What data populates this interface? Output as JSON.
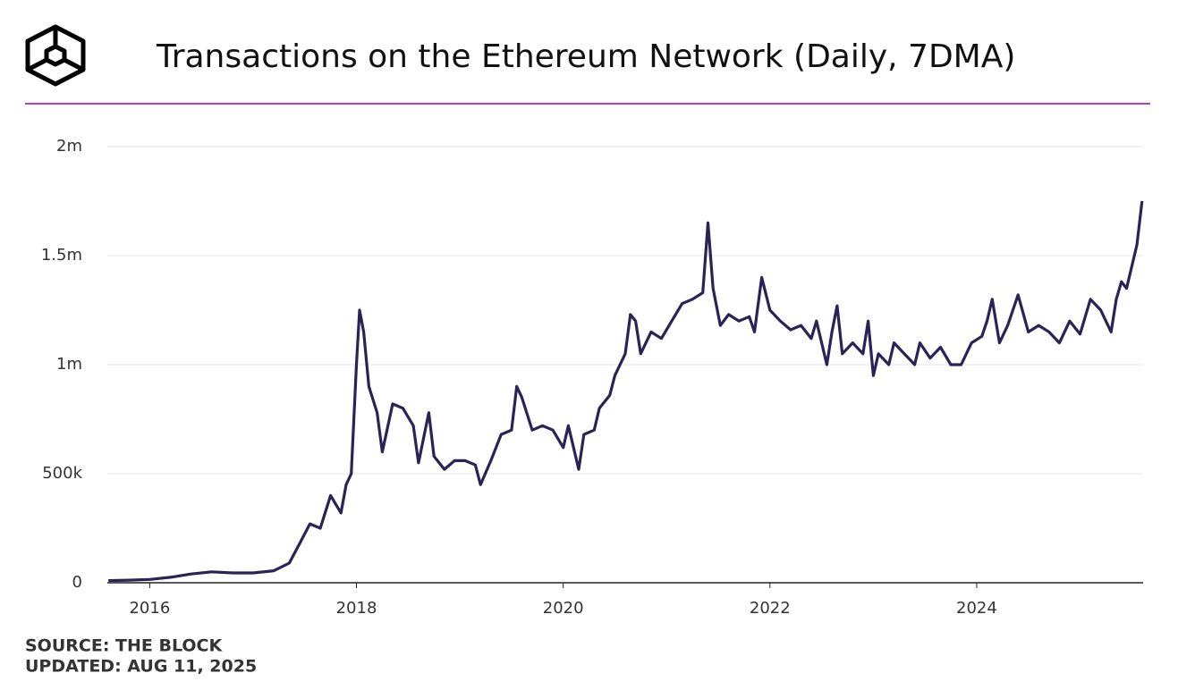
{
  "chart_data": {
    "type": "line",
    "title": "Transactions on the Ethereum Network (Daily, 7DMA)",
    "source": "SOURCE: THE BLOCK",
    "updated": "UPDATED: AUG 11, 2025",
    "color": "#2a2356",
    "grid": true,
    "xlim": [
      2015.59,
      2025.61
    ],
    "xticks": [
      2016,
      2018,
      2020,
      2022,
      2024
    ],
    "ylim": [
      0,
      2000000
    ],
    "yticks": [
      {
        "value": 0,
        "label": "0"
      },
      {
        "value": 500000,
        "label": "500k"
      },
      {
        "value": 1000000,
        "label": "1m"
      },
      {
        "value": 1500000,
        "label": "1.5m"
      },
      {
        "value": 2000000,
        "label": "2m"
      }
    ],
    "x": [
      2015.6,
      2015.8,
      2016.0,
      2016.2,
      2016.4,
      2016.6,
      2016.8,
      2017.0,
      2017.2,
      2017.35,
      2017.45,
      2017.55,
      2017.65,
      2017.75,
      2017.85,
      2017.9,
      2017.95,
      2018.0,
      2018.03,
      2018.07,
      2018.12,
      2018.2,
      2018.25,
      2018.35,
      2018.45,
      2018.55,
      2018.6,
      2018.7,
      2018.75,
      2018.85,
      2018.95,
      2019.05,
      2019.15,
      2019.2,
      2019.3,
      2019.4,
      2019.5,
      2019.55,
      2019.6,
      2019.7,
      2019.8,
      2019.9,
      2020.0,
      2020.05,
      2020.15,
      2020.2,
      2020.3,
      2020.35,
      2020.45,
      2020.5,
      2020.6,
      2020.65,
      2020.7,
      2020.75,
      2020.85,
      2020.95,
      2021.05,
      2021.15,
      2021.25,
      2021.35,
      2021.4,
      2021.45,
      2021.52,
      2021.6,
      2021.7,
      2021.8,
      2021.85,
      2021.92,
      2022.0,
      2022.1,
      2022.2,
      2022.3,
      2022.4,
      2022.45,
      2022.5,
      2022.55,
      2022.6,
      2022.65,
      2022.7,
      2022.8,
      2022.9,
      2022.95,
      2023.0,
      2023.05,
      2023.15,
      2023.2,
      2023.3,
      2023.4,
      2023.45,
      2023.55,
      2023.65,
      2023.75,
      2023.85,
      2023.95,
      2024.05,
      2024.1,
      2024.15,
      2024.22,
      2024.3,
      2024.4,
      2024.5,
      2024.6,
      2024.7,
      2024.8,
      2024.9,
      2025.0,
      2025.1,
      2025.2,
      2025.3,
      2025.35,
      2025.4,
      2025.45,
      2025.5,
      2025.55,
      2025.6
    ],
    "values": [
      10000,
      12000,
      15000,
      25000,
      40000,
      50000,
      45000,
      45000,
      55000,
      90000,
      180000,
      270000,
      250000,
      400000,
      320000,
      450000,
      500000,
      1000000,
      1250000,
      1150000,
      900000,
      780000,
      600000,
      820000,
      800000,
      720000,
      550000,
      780000,
      580000,
      520000,
      560000,
      560000,
      540000,
      450000,
      560000,
      680000,
      700000,
      900000,
      850000,
      700000,
      720000,
      700000,
      620000,
      720000,
      520000,
      680000,
      700000,
      800000,
      860000,
      950000,
      1050000,
      1230000,
      1200000,
      1050000,
      1150000,
      1120000,
      1200000,
      1280000,
      1300000,
      1330000,
      1650000,
      1350000,
      1180000,
      1230000,
      1200000,
      1220000,
      1150000,
      1400000,
      1250000,
      1200000,
      1160000,
      1180000,
      1120000,
      1200000,
      1100000,
      1000000,
      1150000,
      1270000,
      1050000,
      1100000,
      1050000,
      1200000,
      950000,
      1050000,
      1000000,
      1100000,
      1050000,
      1000000,
      1100000,
      1030000,
      1080000,
      1000000,
      1000000,
      1100000,
      1130000,
      1200000,
      1300000,
      1100000,
      1180000,
      1320000,
      1150000,
      1180000,
      1150000,
      1100000,
      1200000,
      1140000,
      1300000,
      1250000,
      1150000,
      1300000,
      1380000,
      1350000,
      1450000,
      1550000,
      1750000
    ]
  }
}
